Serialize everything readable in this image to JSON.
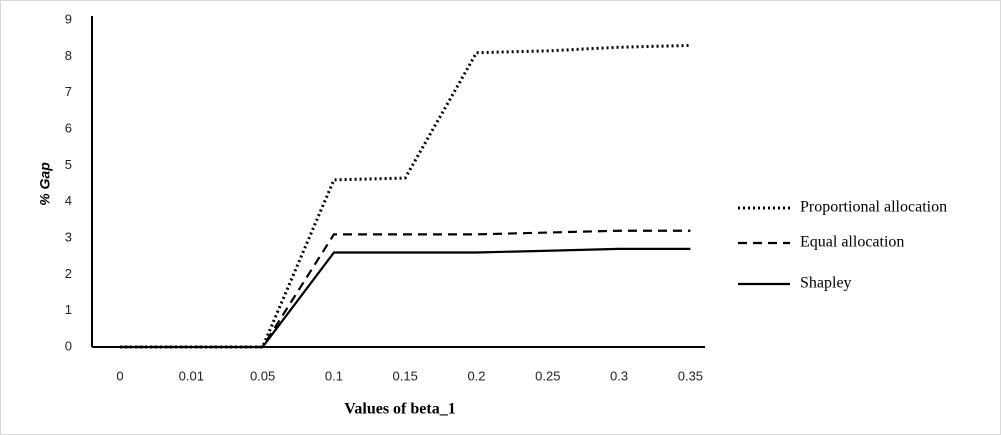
{
  "chart_data": {
    "type": "line",
    "x_label": "Values of beta_1",
    "y_label": "% Gap",
    "categories": [
      "0",
      "0.01",
      "0.05",
      "0.1",
      "0.15",
      "0.2",
      "0.25",
      "0.3",
      "0.35"
    ],
    "series": [
      {
        "name": "Proportional allocation",
        "color": "#000000",
        "style": "dotted",
        "values": [
          0,
          0,
          0,
          4.6,
          4.65,
          8.1,
          8.15,
          8.25,
          8.3
        ]
      },
      {
        "name": "Equal allocation",
        "color": "#000000",
        "style": "dashed",
        "values": [
          0,
          0,
          0,
          3.1,
          3.1,
          3.1,
          3.15,
          3.2,
          3.2
        ]
      },
      {
        "name": "Shapley",
        "color": "#000000",
        "style": "solid",
        "values": [
          0,
          0,
          0,
          2.6,
          2.6,
          2.6,
          2.65,
          2.7,
          2.7
        ]
      }
    ],
    "ylim": [
      0,
      9
    ],
    "yticks": [
      0,
      1,
      2,
      3,
      4,
      5,
      6,
      7,
      8,
      9
    ],
    "grid": false,
    "legend": "right"
  }
}
